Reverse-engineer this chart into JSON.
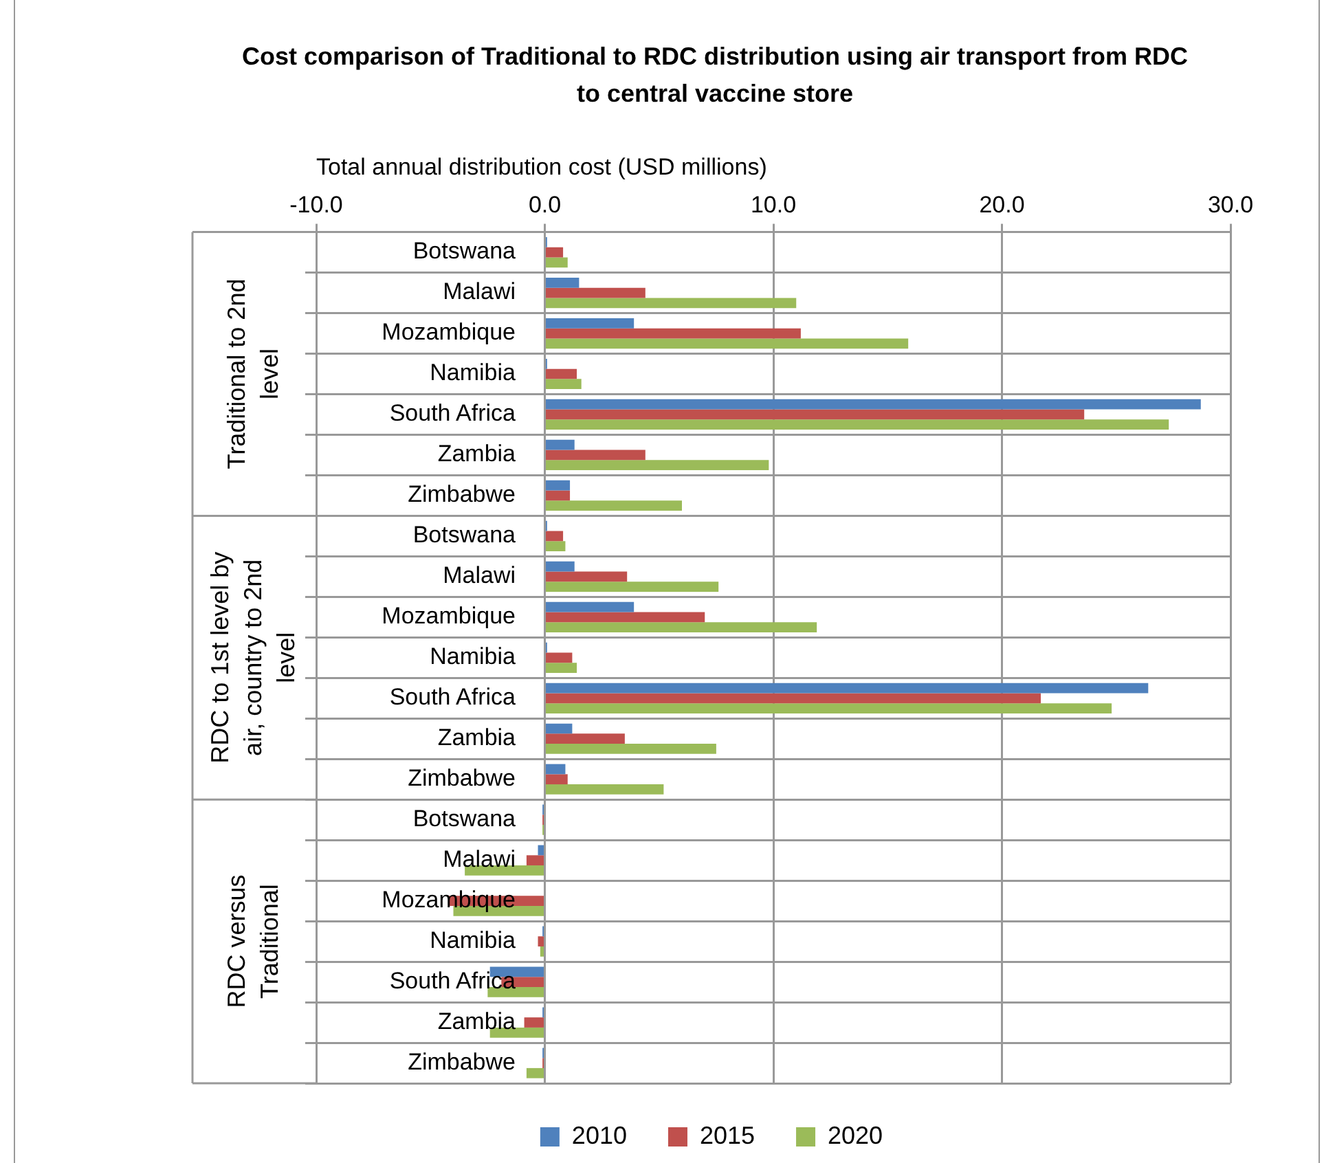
{
  "chart_data": {
    "type": "bar",
    "orientation": "horizontal",
    "title": "Cost comparison of Traditional to RDC distribution using air transport from RDC to central vaccine store",
    "xlabel": "Total annual distribution cost (USD millions)",
    "categories": [
      "Botswana",
      "Malawi",
      "Mozambique",
      "Namibia",
      "South Africa",
      "Zambia",
      "Zimbabwe",
      "Botswana",
      "Malawi",
      "Mozambique",
      "Namibia",
      "South Africa",
      "Zambia",
      "Zimbabwe",
      "Botswana",
      "Malawi",
      "Mozambique",
      "Namibia",
      "South Africa",
      "Zambia",
      "Zimbabwe"
    ],
    "series": [
      {
        "name": "2010",
        "color": "#4f81bd",
        "values": [
          0.1,
          1.5,
          3.9,
          0.1,
          28.7,
          1.3,
          1.1,
          0.1,
          1.3,
          3.9,
          0.1,
          26.4,
          1.2,
          0.9,
          -0.1,
          -0.3,
          0,
          -0.1,
          -2.4,
          -0.1,
          -0.1
        ]
      },
      {
        "name": "2015",
        "color": "#c0504d",
        "values": [
          0.8,
          4.4,
          11.2,
          1.4,
          23.6,
          4.4,
          1.1,
          0.8,
          3.6,
          7.0,
          1.2,
          21.7,
          3.5,
          1.0,
          -0.1,
          -0.8,
          -4.2,
          -0.3,
          -1.9,
          -0.9,
          -0.1
        ]
      },
      {
        "name": "2020",
        "color": "#9bbb59",
        "values": [
          1.0,
          11.0,
          15.9,
          1.6,
          27.3,
          9.8,
          6.0,
          0.9,
          7.6,
          11.9,
          1.4,
          24.8,
          7.5,
          5.2,
          -0.1,
          -3.5,
          -4.0,
          -0.2,
          -2.5,
          -2.4,
          -0.8
        ]
      }
    ],
    "annotations": [
      "Traditional to 2nd level",
      "RDC to 1st level by air, country to 2nd level",
      "RDC versus Traditional"
    ],
    "xlim": [
      -10,
      30
    ],
    "xticks": [
      {
        "value": -10,
        "label": "-10.0"
      },
      {
        "value": 0,
        "label": "0.0"
      },
      {
        "value": 10,
        "label": "10.0"
      },
      {
        "value": 20,
        "label": "20.0"
      },
      {
        "value": 30,
        "label": "30.0"
      }
    ],
    "grid": true,
    "legend": "bottom"
  }
}
